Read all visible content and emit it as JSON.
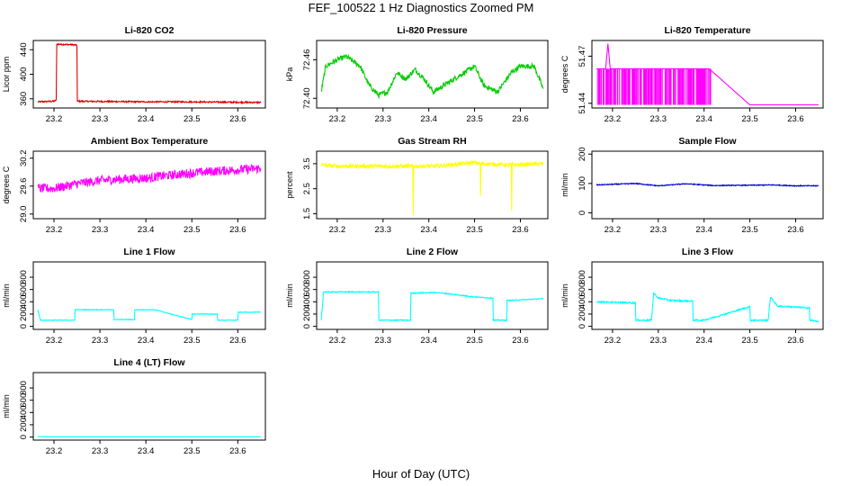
{
  "figure": {
    "title": "FEF_100522  1 Hz Diagnostics Zoomed PM",
    "xlabel": "Hour of Day (UTC)"
  },
  "chart_data": [
    {
      "type": "line",
      "title": "Li-820 CO2",
      "ylabel": "Licor ppm",
      "color": "#dd0000",
      "xlim": [
        23.155,
        23.66
      ],
      "ylim": [
        345,
        455
      ],
      "xticks": [
        "23.2",
        "23.3",
        "23.4",
        "23.5",
        "23.6"
      ],
      "yticks": [
        "360",
        "400",
        "440"
      ],
      "noise": 1.2,
      "x": [
        23.165,
        23.2,
        23.205,
        23.206,
        23.245,
        23.25,
        23.251,
        23.4,
        23.5,
        23.65
      ],
      "y": [
        355,
        356,
        358,
        449,
        448,
        447,
        356,
        355,
        355,
        354
      ]
    },
    {
      "type": "line",
      "title": "Li-820 Pressure",
      "ylabel": "kPa",
      "color": "#00cc00",
      "xlim": [
        23.155,
        23.66
      ],
      "ylim": [
        72.385,
        72.49
      ],
      "xticks": [
        "23.2",
        "23.3",
        "23.4",
        "23.5",
        "23.6"
      ],
      "yticks": [
        "72.40",
        "72.46"
      ],
      "noise": 0.004,
      "x": [
        23.165,
        23.175,
        23.2,
        23.22,
        23.25,
        23.27,
        23.29,
        23.31,
        23.33,
        23.35,
        23.37,
        23.39,
        23.41,
        23.5,
        23.52,
        23.55,
        23.56,
        23.58,
        23.6,
        23.63,
        23.65
      ],
      "y": [
        72.41,
        72.45,
        72.46,
        72.465,
        72.45,
        72.42,
        72.405,
        72.41,
        72.44,
        72.43,
        72.445,
        72.43,
        72.41,
        72.45,
        72.42,
        72.41,
        72.42,
        72.44,
        72.45,
        72.45,
        72.415
      ]
    },
    {
      "type": "line",
      "title": "Li-820 Temperature",
      "ylabel": "degrees C",
      "color": "#ff00ff",
      "xlim": [
        23.155,
        23.66
      ],
      "ylim": [
        51.437,
        51.48
      ],
      "xticks": [
        "23.2",
        "23.3",
        "23.4",
        "23.5",
        "23.6"
      ],
      "yticks": [
        "51.44",
        "51.47"
      ],
      "noise": 0,
      "x": [
        23.165,
        23.185,
        23.19,
        23.195,
        23.2,
        23.41,
        23.415,
        23.5,
        23.65
      ],
      "y": [
        51.462,
        51.462,
        51.478,
        51.462,
        51.462,
        51.462,
        51.461,
        51.439,
        51.439
      ]
    },
    {
      "type": "line",
      "title": "Ambient Box Temperature",
      "ylabel": "degrees C",
      "color": "#ff00ff",
      "xlim": [
        23.155,
        23.66
      ],
      "ylim": [
        28.9,
        30.35
      ],
      "xticks": [
        "23.2",
        "23.3",
        "23.4",
        "23.5",
        "23.6"
      ],
      "yticks": [
        "29.0",
        "29.6",
        "30.2"
      ],
      "noise": 0.1,
      "x": [
        23.165,
        23.2,
        23.25,
        23.3,
        23.35,
        23.415,
        23.42,
        23.5,
        23.55,
        23.6,
        23.65
      ],
      "y": [
        29.55,
        29.55,
        29.65,
        29.72,
        29.75,
        29.78,
        29.8,
        29.88,
        29.92,
        29.95,
        29.98
      ]
    },
    {
      "type": "line",
      "title": "Gas Stream RH",
      "ylabel": "percent",
      "color": "#ffff00",
      "xlim": [
        23.155,
        23.66
      ],
      "ylim": [
        1.3,
        4.0
      ],
      "xticks": [
        "23.2",
        "23.3",
        "23.4",
        "23.5",
        "23.6"
      ],
      "yticks": [
        "1.5",
        "2.5",
        "3.5"
      ],
      "noise": 0.08,
      "x": [
        23.165,
        23.2,
        23.3,
        23.365,
        23.366,
        23.367,
        23.415,
        23.5,
        23.512,
        23.513,
        23.514,
        23.58,
        23.581,
        23.582,
        23.65
      ],
      "y": [
        3.45,
        3.4,
        3.4,
        3.4,
        1.4,
        3.4,
        3.4,
        3.55,
        3.5,
        2.2,
        3.5,
        3.45,
        1.6,
        3.45,
        3.5
      ]
    },
    {
      "type": "line",
      "title": "Sample Flow",
      "ylabel": "ml/min",
      "color": "#0000cc",
      "xlim": [
        23.155,
        23.66
      ],
      "ylim": [
        -20,
        210
      ],
      "xticks": [
        "23.2",
        "23.3",
        "23.4",
        "23.5",
        "23.6"
      ],
      "yticks": [
        "0",
        "100",
        "200"
      ],
      "noise": 1.5,
      "x": [
        23.165,
        23.25,
        23.3,
        23.36,
        23.42,
        23.5,
        23.55,
        23.6,
        23.65
      ],
      "y": [
        95,
        100,
        92,
        99,
        93,
        94,
        95,
        92,
        92
      ]
    },
    {
      "type": "line",
      "title": "Line 1 Flow",
      "ylabel": "ml/min",
      "color": "#00ffff",
      "xlim": [
        23.155,
        23.66
      ],
      "ylim": [
        -50,
        1050
      ],
      "xticks": [
        "23.2",
        "23.3",
        "23.4",
        "23.5",
        "23.6"
      ],
      "yticks": [
        "0",
        "200",
        "400",
        "600",
        "800"
      ],
      "noise": 5,
      "x": [
        23.165,
        23.17,
        23.171,
        23.245,
        23.246,
        23.33,
        23.331,
        23.375,
        23.376,
        23.42,
        23.5,
        23.501,
        23.555,
        23.556,
        23.6,
        23.601,
        23.65
      ],
      "y": [
        270,
        120,
        100,
        100,
        270,
        270,
        110,
        110,
        270,
        270,
        110,
        200,
        200,
        100,
        100,
        230,
        230
      ]
    },
    {
      "type": "line",
      "title": "Line 2 Flow",
      "ylabel": "ml/min",
      "color": "#00ffff",
      "xlim": [
        23.155,
        23.66
      ],
      "ylim": [
        -50,
        1050
      ],
      "xticks": [
        "23.2",
        "23.3",
        "23.4",
        "23.5",
        "23.6"
      ],
      "yticks": [
        "0",
        "200",
        "400",
        "600",
        "800"
      ],
      "noise": 8,
      "x": [
        23.165,
        23.17,
        23.171,
        23.29,
        23.291,
        23.36,
        23.361,
        23.42,
        23.5,
        23.54,
        23.541,
        23.57,
        23.571,
        23.65
      ],
      "y": [
        100,
        560,
        560,
        560,
        100,
        100,
        540,
        550,
        480,
        460,
        100,
        100,
        420,
        450
      ]
    },
    {
      "type": "line",
      "title": "Line 3 Flow",
      "ylabel": "ml/min",
      "color": "#00ffff",
      "xlim": [
        23.155,
        23.66
      ],
      "ylim": [
        -50,
        1050
      ],
      "xticks": [
        "23.2",
        "23.3",
        "23.4",
        "23.5",
        "23.6"
      ],
      "yticks": [
        "0",
        "200",
        "400",
        "600",
        "800"
      ],
      "noise": 12,
      "x": [
        23.165,
        23.25,
        23.251,
        23.285,
        23.29,
        23.3,
        23.33,
        23.375,
        23.376,
        23.4,
        23.5,
        23.501,
        23.54,
        23.545,
        23.56,
        23.63,
        23.631,
        23.65
      ],
      "y": [
        400,
        380,
        100,
        100,
        540,
        460,
        420,
        410,
        100,
        100,
        320,
        100,
        100,
        480,
        330,
        300,
        100,
        80
      ]
    },
    {
      "type": "line",
      "title": "Line 4 (LT) Flow",
      "ylabel": "ml/min",
      "color": "#00ffff",
      "xlim": [
        23.155,
        23.66
      ],
      "ylim": [
        -50,
        1050
      ],
      "xticks": [
        "23.2",
        "23.3",
        "23.4",
        "23.5",
        "23.6"
      ],
      "yticks": [
        "0",
        "200",
        "400",
        "600",
        "800"
      ],
      "noise": 1.5,
      "x": [
        23.165,
        23.3,
        23.4,
        23.5,
        23.65
      ],
      "y": [
        5,
        5,
        5,
        5,
        5
      ]
    }
  ]
}
